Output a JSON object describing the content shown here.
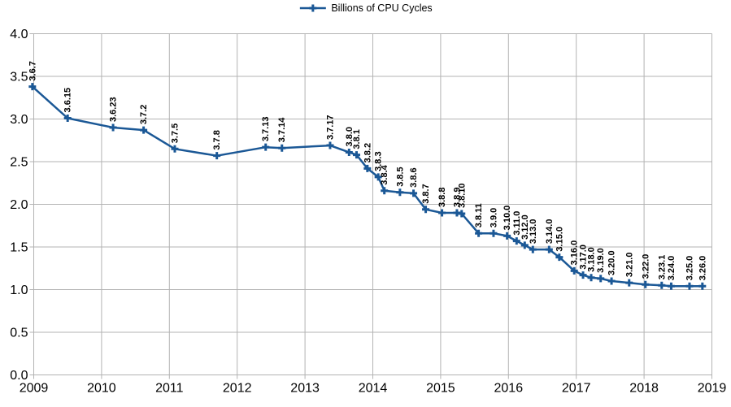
{
  "colors": {
    "series": "#1b5896",
    "grid": "#b3b3b3",
    "axis_text": "#000000",
    "label_text": "#000000",
    "background": "#ffffff"
  },
  "legend": {
    "entry": "Billions of CPU Cycles",
    "position": "top-center",
    "symbol": "line-with-plus-marker"
  },
  "chart_data": {
    "type": "line",
    "title": "",
    "xlabel": "",
    "ylabel": "",
    "xlim": [
      2009,
      2019
    ],
    "ylim": [
      0.0,
      4.0
    ],
    "x_ticks": [
      2009,
      2010,
      2011,
      2012,
      2013,
      2014,
      2015,
      2016,
      2017,
      2018,
      2019
    ],
    "y_ticks": [
      0.0,
      0.5,
      1.0,
      1.5,
      2.0,
      2.5,
      3.0,
      3.5,
      4.0
    ],
    "y_tick_labels": [
      "0.0",
      "0.5",
      "1.0",
      "1.5",
      "2.0",
      "2.5",
      "3.0",
      "3.5",
      "4.0"
    ],
    "grid": true,
    "legend_position": "top",
    "marker": "plus",
    "data_labels_rotation_deg": 90,
    "series": [
      {
        "name": "Billions of CPU Cycles",
        "color": "#1b5896",
        "points": [
          {
            "label": "3.6.7",
            "x": 2008.98,
            "y": 3.38
          },
          {
            "label": "3.6.15",
            "x": 2009.5,
            "y": 3.01
          },
          {
            "label": "3.6.23",
            "x": 2010.17,
            "y": 2.9
          },
          {
            "label": "3.7.2",
            "x": 2010.62,
            "y": 2.87
          },
          {
            "label": "3.7.5",
            "x": 2011.08,
            "y": 2.65
          },
          {
            "label": "3.7.8",
            "x": 2011.7,
            "y": 2.57
          },
          {
            "label": "3.7.13",
            "x": 2012.42,
            "y": 2.67
          },
          {
            "label": "3.7.14",
            "x": 2012.66,
            "y": 2.66
          },
          {
            "label": "3.7.17",
            "x": 2013.37,
            "y": 2.69
          },
          {
            "label": "3.8.0",
            "x": 2013.65,
            "y": 2.61
          },
          {
            "label": "3.8.1",
            "x": 2013.76,
            "y": 2.58
          },
          {
            "label": "3.8.2",
            "x": 2013.92,
            "y": 2.42
          },
          {
            "label": "3.8.3",
            "x": 2014.08,
            "y": 2.32
          },
          {
            "label": "3.8.4",
            "x": 2014.17,
            "y": 2.16
          },
          {
            "label": "3.8.5",
            "x": 2014.4,
            "y": 2.14
          },
          {
            "label": "3.8.6",
            "x": 2014.6,
            "y": 2.13
          },
          {
            "label": "3.8.7",
            "x": 2014.78,
            "y": 1.94
          },
          {
            "label": "3.8.8",
            "x": 2015.02,
            "y": 1.9
          },
          {
            "label": "3.8.9",
            "x": 2015.24,
            "y": 1.9
          },
          {
            "label": "3.8.10",
            "x": 2015.31,
            "y": 1.89
          },
          {
            "label": "3.8.11",
            "x": 2015.56,
            "y": 1.66
          },
          {
            "label": "3.9.0",
            "x": 2015.78,
            "y": 1.66
          },
          {
            "label": "3.10.0",
            "x": 2015.98,
            "y": 1.63
          },
          {
            "label": "3.11.0",
            "x": 2016.12,
            "y": 1.57
          },
          {
            "label": "3.12.0",
            "x": 2016.24,
            "y": 1.52
          },
          {
            "label": "3.13.0",
            "x": 2016.36,
            "y": 1.47
          },
          {
            "label": "3.14.0",
            "x": 2016.6,
            "y": 1.47
          },
          {
            "label": "3.15.0",
            "x": 2016.75,
            "y": 1.38
          },
          {
            "label": "3.16.0",
            "x": 2016.97,
            "y": 1.22
          },
          {
            "label": "3.17.0",
            "x": 2017.1,
            "y": 1.17
          },
          {
            "label": "3.18.0",
            "x": 2017.22,
            "y": 1.14
          },
          {
            "label": "3.19.0",
            "x": 2017.36,
            "y": 1.13
          },
          {
            "label": "3.20.0",
            "x": 2017.52,
            "y": 1.1
          },
          {
            "label": "3.21.0",
            "x": 2017.78,
            "y": 1.08
          },
          {
            "label": "3.22.0",
            "x": 2018.02,
            "y": 1.06
          },
          {
            "label": "3.23.1",
            "x": 2018.26,
            "y": 1.05
          },
          {
            "label": "3.24.0",
            "x": 2018.4,
            "y": 1.04
          },
          {
            "label": "3.25.0",
            "x": 2018.67,
            "y": 1.04
          },
          {
            "label": "3.26.0",
            "x": 2018.86,
            "y": 1.04
          }
        ]
      }
    ]
  }
}
